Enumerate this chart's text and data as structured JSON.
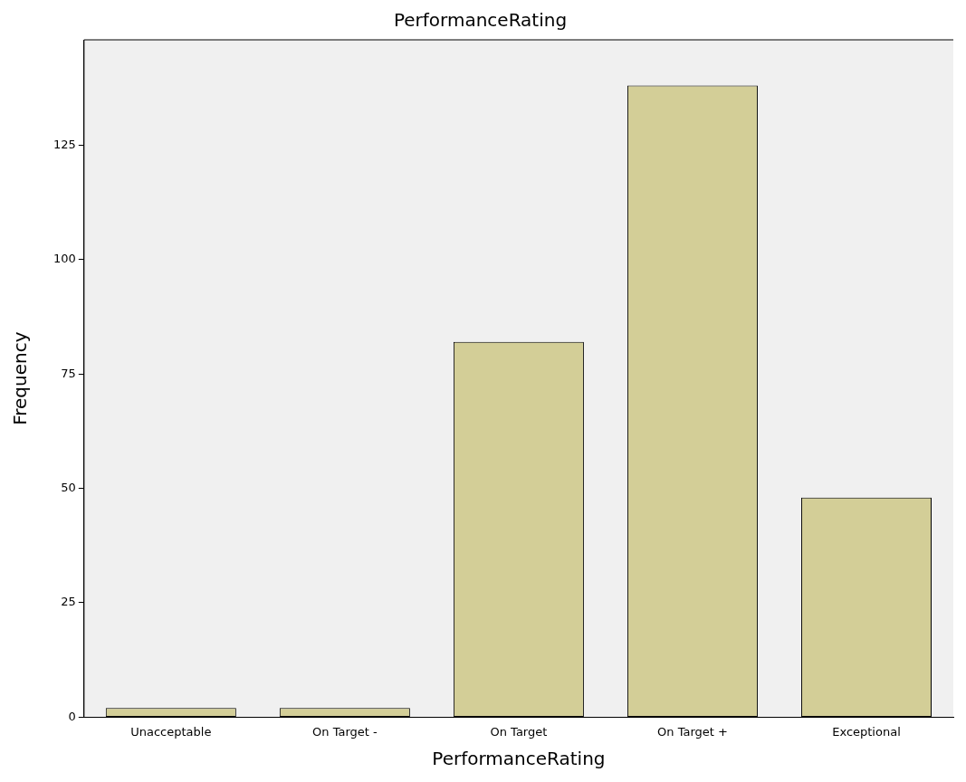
{
  "chart_data": {
    "type": "bar",
    "title": "PerformanceRating",
    "xlabel": "PerformanceRating",
    "ylabel": "Frequency",
    "categories": [
      "Unacceptable",
      "On Target -",
      "On Target",
      "On Target +",
      "Exceptional"
    ],
    "values": [
      2,
      2,
      82,
      138,
      48
    ],
    "color": "#d3ce97",
    "ylim": [
      0,
      148
    ],
    "yticks": [
      0,
      25,
      50,
      75,
      100,
      125
    ],
    "grid": false,
    "legend": false
  }
}
